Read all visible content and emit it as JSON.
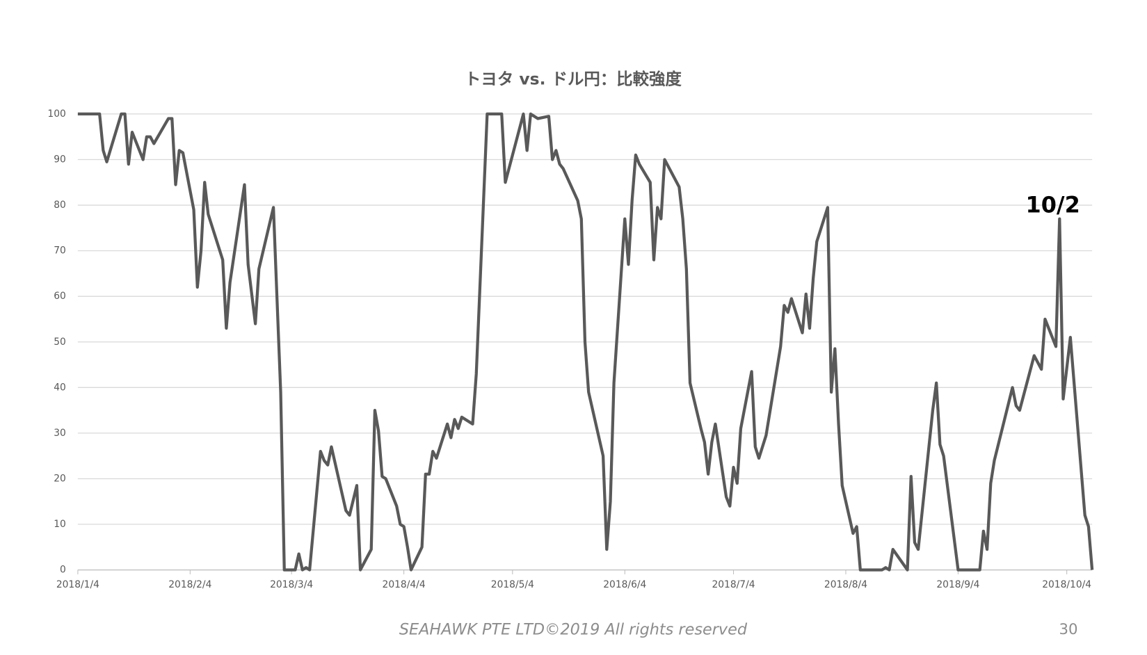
{
  "chart_data": {
    "type": "line",
    "title": "トヨタ vs. ドル円：比較強度",
    "footer": "SEAHAWK PTE LTD©2019 All rights reserved",
    "page_number": "30",
    "annotations": [
      {
        "text": "10/2",
        "x": "2018-10-02",
        "y": 77
      }
    ],
    "xlim": [
      "2018-01-04",
      "2018-10-11"
    ],
    "xticks": [
      {
        "value": "2018-01-04",
        "label": "2018/1/4"
      },
      {
        "value": "2018-02-04",
        "label": "2018/2/4"
      },
      {
        "value": "2018-03-04",
        "label": "2018/3/4"
      },
      {
        "value": "2018-04-04",
        "label": "2018/4/4"
      },
      {
        "value": "2018-05-04",
        "label": "2018/5/4"
      },
      {
        "value": "2018-06-04",
        "label": "2018/6/4"
      },
      {
        "value": "2018-07-04",
        "label": "2018/7/4"
      },
      {
        "value": "2018-08-04",
        "label": "2018/8/4"
      },
      {
        "value": "2018-09-04",
        "label": "2018/9/4"
      },
      {
        "value": "2018-10-04",
        "label": "2018/10/4"
      }
    ],
    "ylim": [
      0,
      100
    ],
    "yticks": [
      0,
      10,
      20,
      30,
      40,
      50,
      60,
      70,
      80,
      90,
      100
    ],
    "grid": true,
    "x": [
      "2018-01-04",
      "2018-01-10",
      "2018-01-11",
      "2018-01-12",
      "2018-01-16",
      "2018-01-17",
      "2018-01-18",
      "2018-01-19",
      "2018-01-22",
      "2018-01-23",
      "2018-01-24",
      "2018-01-25",
      "2018-01-29",
      "2018-01-30",
      "2018-01-31",
      "2018-02-01",
      "2018-02-02",
      "2018-02-05",
      "2018-02-06",
      "2018-02-07",
      "2018-02-08",
      "2018-02-09",
      "2018-02-13",
      "2018-02-14",
      "2018-02-15",
      "2018-02-19",
      "2018-02-20",
      "2018-02-22",
      "2018-02-23",
      "2018-02-27",
      "2018-03-01",
      "2018-03-02",
      "2018-03-05",
      "2018-03-06",
      "2018-03-07",
      "2018-03-08",
      "2018-03-09",
      "2018-03-12",
      "2018-03-13",
      "2018-03-14",
      "2018-03-15",
      "2018-03-19",
      "2018-03-20",
      "2018-03-22",
      "2018-03-23",
      "2018-03-26",
      "2018-03-27",
      "2018-03-28",
      "2018-03-29",
      "2018-03-30",
      "2018-04-02",
      "2018-04-03",
      "2018-04-04",
      "2018-04-05",
      "2018-04-06",
      "2018-04-09",
      "2018-04-10",
      "2018-04-11",
      "2018-04-12",
      "2018-04-13",
      "2018-04-16",
      "2018-04-17",
      "2018-04-18",
      "2018-04-19",
      "2018-04-20",
      "2018-04-23",
      "2018-04-24",
      "2018-04-27",
      "2018-05-01",
      "2018-05-02",
      "2018-05-07",
      "2018-05-08",
      "2018-05-09",
      "2018-05-11",
      "2018-05-14",
      "2018-05-15",
      "2018-05-16",
      "2018-05-17",
      "2018-05-18",
      "2018-05-22",
      "2018-05-23",
      "2018-05-24",
      "2018-05-25",
      "2018-05-29",
      "2018-05-30",
      "2018-05-31",
      "2018-06-01",
      "2018-06-04",
      "2018-06-05",
      "2018-06-06",
      "2018-06-07",
      "2018-06-08",
      "2018-06-11",
      "2018-06-12",
      "2018-06-13",
      "2018-06-14",
      "2018-06-15",
      "2018-06-19",
      "2018-06-20",
      "2018-06-21",
      "2018-06-22",
      "2018-06-25",
      "2018-06-26",
      "2018-06-27",
      "2018-06-28",
      "2018-06-29",
      "2018-07-02",
      "2018-07-03",
      "2018-07-04",
      "2018-07-05",
      "2018-07-06",
      "2018-07-09",
      "2018-07-10",
      "2018-07-11",
      "2018-07-13",
      "2018-07-17",
      "2018-07-18",
      "2018-07-19",
      "2018-07-20",
      "2018-07-23",
      "2018-07-24",
      "2018-07-25",
      "2018-07-26",
      "2018-07-27",
      "2018-07-30",
      "2018-07-31",
      "2018-08-01",
      "2018-08-02",
      "2018-08-03",
      "2018-08-06",
      "2018-08-07",
      "2018-08-08",
      "2018-08-14",
      "2018-08-15",
      "2018-08-16",
      "2018-08-17",
      "2018-08-21",
      "2018-08-22",
      "2018-08-23",
      "2018-08-24",
      "2018-08-28",
      "2018-08-29",
      "2018-08-30",
      "2018-08-31",
      "2018-09-04",
      "2018-09-10",
      "2018-09-11",
      "2018-09-12",
      "2018-09-13",
      "2018-09-14",
      "2018-09-19",
      "2018-09-20",
      "2018-09-21",
      "2018-09-25",
      "2018-09-27",
      "2018-09-28",
      "2018-10-01",
      "2018-10-02",
      "2018-10-03",
      "2018-10-05",
      "2018-10-09",
      "2018-10-10",
      "2018-10-11"
    ],
    "series": [
      {
        "color": "#595959",
        "values": [
          100,
          100,
          92,
          89.5,
          100,
          100,
          89,
          96,
          90,
          95,
          95,
          93.5,
          99,
          99,
          84.5,
          92,
          91.5,
          79,
          62,
          70,
          85,
          78,
          68,
          53,
          63,
          84.5,
          67,
          54,
          66,
          79.5,
          39,
          0,
          0,
          3.5,
          0,
          0.5,
          0,
          26,
          24,
          23,
          27,
          13,
          12,
          18.5,
          0,
          4.5,
          35,
          30.5,
          20.5,
          20,
          14,
          10,
          9.5,
          5,
          0,
          5,
          21,
          21,
          26,
          24.5,
          32,
          29,
          33,
          31,
          33.5,
          32,
          43,
          100,
          100,
          85,
          100,
          92,
          100,
          99,
          99.5,
          90,
          92,
          89,
          88,
          81,
          77,
          50,
          39,
          25,
          4.5,
          15,
          41,
          77,
          67,
          81,
          91,
          89,
          85,
          68,
          79.5,
          77,
          90,
          84,
          77,
          66,
          41,
          31,
          28,
          21,
          28,
          32,
          16,
          14,
          22.5,
          19,
          31,
          43.5,
          27,
          24.5,
          29.5,
          49,
          58,
          56.5,
          59.5,
          52,
          60.5,
          53,
          64,
          72,
          79.5,
          39,
          48.5,
          32,
          18.5,
          8,
          9.5,
          0,
          0,
          0.5,
          0,
          4.5,
          0,
          20.5,
          6,
          4.5,
          35,
          41,
          27.5,
          25,
          0,
          0,
          8.5,
          4.5,
          19,
          24,
          40,
          36,
          35,
          47,
          44,
          55,
          49,
          77,
          37.5,
          51,
          12,
          9.5,
          0
        ]
      }
    ]
  }
}
